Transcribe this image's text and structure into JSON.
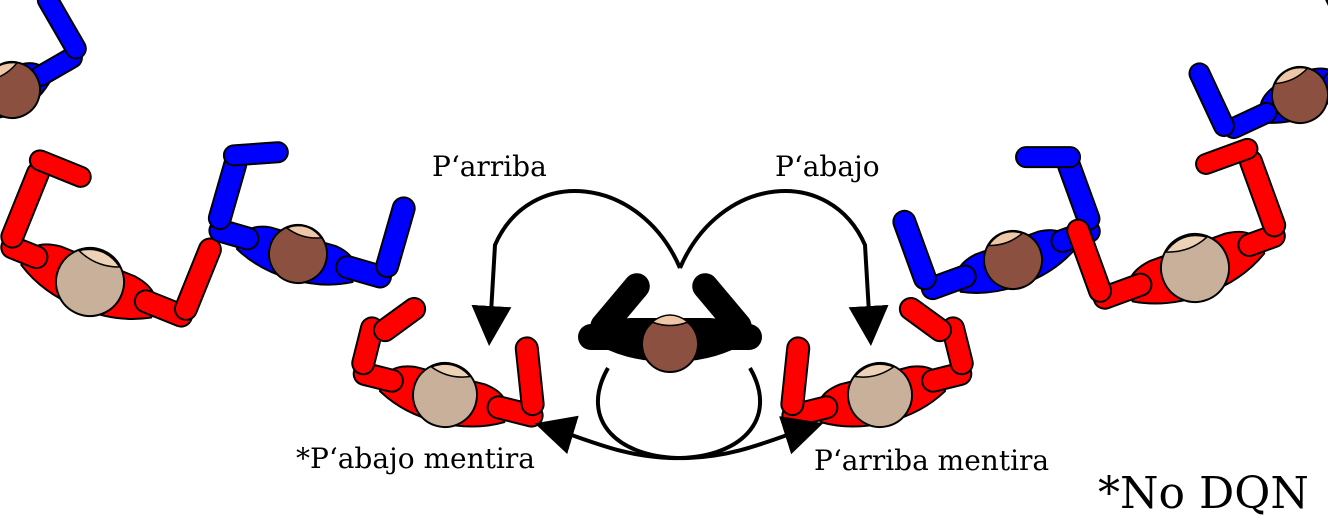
{
  "labels": {
    "up": "P‘arriba",
    "down": "P‘abajo",
    "down_lie": "*P‘abajo mentira",
    "up_lie": "P‘arriba mentira",
    "note": "*No DQN"
  },
  "colors": {
    "red_dancer": "#ff0000",
    "blue_dancer": "#0000ff",
    "center_dancer": "#000000",
    "skin_dark": "#8b5040",
    "skin_light": "#c8b09a",
    "face_dark": "#edc7a8",
    "face_light": "#edd2b8",
    "arrow": "#000000"
  },
  "figures": [
    {
      "name": "blue-dancer-top-left",
      "color": "blue",
      "skin": "dark"
    },
    {
      "name": "red-dancer-left-outer",
      "color": "red",
      "skin": "light"
    },
    {
      "name": "blue-dancer-left-inner",
      "color": "blue",
      "skin": "dark"
    },
    {
      "name": "red-dancer-left-center",
      "color": "red",
      "skin": "light"
    },
    {
      "name": "center-dancer",
      "color": "black",
      "skin": "dark"
    },
    {
      "name": "red-dancer-right-center",
      "color": "red",
      "skin": "light"
    },
    {
      "name": "blue-dancer-right-inner",
      "color": "blue",
      "skin": "dark"
    },
    {
      "name": "red-dancer-right-outer",
      "color": "red",
      "skin": "light"
    },
    {
      "name": "blue-dancer-top-right",
      "color": "blue",
      "skin": "dark"
    }
  ]
}
